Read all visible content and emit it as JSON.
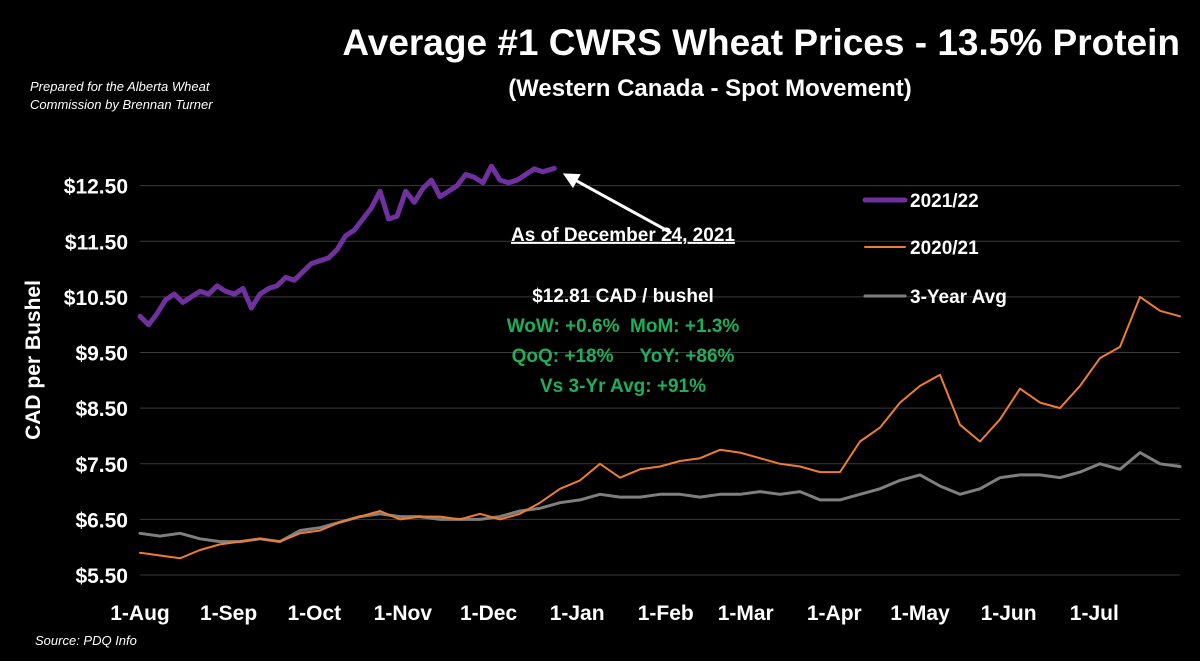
{
  "chart_data": {
    "type": "line",
    "title": "Average #1 CWRS Wheat Prices - 13.5% Protein",
    "subtitle": "(Western Canada - Spot Movement)",
    "prepared_by": [
      "Prepared for  the Alberta Wheat",
      "Commission by Brennan Turner"
    ],
    "source": "Source: PDQ Info",
    "ylabel": "CAD per Bushel",
    "xlabel": "",
    "ylim": [
      5.5,
      13.5
    ],
    "y_ticks": [
      "$5.50",
      "$6.50",
      "$7.50",
      "$8.50",
      "$9.50",
      "$10.50",
      "$11.50",
      "$12.50"
    ],
    "y_tick_values": [
      5.5,
      6.5,
      7.5,
      8.5,
      9.5,
      10.5,
      11.5,
      12.5
    ],
    "x_ticks": [
      "1-Aug",
      "1-Sep",
      "1-Oct",
      "1-Nov",
      "1-Dec",
      "1-Jan",
      "1-Feb",
      "1-Mar",
      "1-Apr",
      "1-May",
      "1-Jun",
      "1-Jul"
    ],
    "x_tick_values": [
      "Aug 1",
      "Sep 1",
      "Oct 1",
      "Nov 1",
      "Dec 1",
      "Jan 1",
      "Feb 1",
      "Mar 1",
      "Apr 1",
      "May 1",
      "Jun 1",
      "Jul 1"
    ],
    "x_range": [
      "Aug 1",
      "Jul 31"
    ],
    "grid": true,
    "legend_position": "right",
    "series": [
      {
        "name": "2021/22",
        "color": "#7030a0",
        "x": [
          "Aug 1",
          "Aug 4",
          "Aug 7",
          "Aug 10",
          "Aug 13",
          "Aug 16",
          "Aug 19",
          "Aug 22",
          "Aug 25",
          "Aug 28",
          "Aug 31",
          "Sep 3",
          "Sep 6",
          "Sep 9",
          "Sep 12",
          "Sep 15",
          "Sep 18",
          "Sep 21",
          "Sep 24",
          "Sep 27",
          "Sep 30",
          "Oct 3",
          "Oct 6",
          "Oct 9",
          "Oct 12",
          "Oct 15",
          "Oct 18",
          "Oct 21",
          "Oct 24",
          "Oct 27",
          "Oct 30",
          "Nov 2",
          "Nov 5",
          "Nov 8",
          "Nov 11",
          "Nov 14",
          "Nov 17",
          "Nov 20",
          "Nov 23",
          "Nov 26",
          "Nov 29",
          "Dec 2",
          "Dec 5",
          "Dec 8",
          "Dec 11",
          "Dec 14",
          "Dec 17",
          "Dec 20",
          "Dec 24"
        ],
        "values": [
          10.15,
          10.0,
          10.2,
          10.45,
          10.55,
          10.4,
          10.5,
          10.6,
          10.55,
          10.7,
          10.6,
          10.55,
          10.65,
          10.3,
          10.55,
          10.65,
          10.7,
          10.85,
          10.8,
          10.95,
          11.1,
          11.15,
          11.2,
          11.35,
          11.6,
          11.7,
          11.9,
          12.1,
          12.4,
          11.9,
          11.95,
          12.4,
          12.2,
          12.45,
          12.6,
          12.3,
          12.4,
          12.5,
          12.7,
          12.65,
          12.55,
          12.85,
          12.6,
          12.55,
          12.6,
          12.7,
          12.8,
          12.75,
          12.81
        ]
      },
      {
        "name": "2020/21",
        "color": "#ed7d31",
        "x": [
          "Aug 1",
          "Aug 8",
          "Aug 15",
          "Aug 22",
          "Aug 29",
          "Sep 5",
          "Sep 12",
          "Sep 19",
          "Sep 26",
          "Oct 3",
          "Oct 10",
          "Oct 17",
          "Oct 24",
          "Oct 31",
          "Nov 7",
          "Nov 14",
          "Nov 21",
          "Nov 28",
          "Dec 5",
          "Dec 12",
          "Dec 19",
          "Dec 26",
          "Jan 2",
          "Jan 9",
          "Jan 16",
          "Jan 23",
          "Jan 30",
          "Feb 6",
          "Feb 13",
          "Feb 20",
          "Feb 27",
          "Mar 6",
          "Mar 13",
          "Mar 20",
          "Mar 27",
          "Apr 3",
          "Apr 10",
          "Apr 17",
          "Apr 24",
          "May 1",
          "May 8",
          "May 15",
          "May 22",
          "May 29",
          "Jun 5",
          "Jun 12",
          "Jun 19",
          "Jun 26",
          "Jul 3",
          "Jul 10",
          "Jul 17",
          "Jul 24",
          "Jul 31"
        ],
        "values": [
          5.9,
          5.85,
          5.8,
          5.95,
          6.05,
          6.1,
          6.15,
          6.1,
          6.25,
          6.3,
          6.45,
          6.55,
          6.65,
          6.5,
          6.55,
          6.55,
          6.5,
          6.6,
          6.5,
          6.6,
          6.8,
          7.05,
          7.2,
          7.5,
          7.25,
          7.4,
          7.45,
          7.55,
          7.6,
          7.75,
          7.7,
          7.6,
          7.5,
          7.45,
          7.35,
          7.35,
          7.9,
          8.15,
          8.6,
          8.9,
          9.1,
          8.2,
          7.9,
          8.3,
          8.85,
          8.6,
          8.5,
          8.9,
          9.4,
          9.6,
          10.5,
          10.25,
          10.15
        ]
      },
      {
        "name": "3-Year Avg",
        "color": "#7f7f7f",
        "x": [
          "Aug 1",
          "Aug 8",
          "Aug 15",
          "Aug 22",
          "Aug 29",
          "Sep 5",
          "Sep 12",
          "Sep 19",
          "Sep 26",
          "Oct 3",
          "Oct 10",
          "Oct 17",
          "Oct 24",
          "Oct 31",
          "Nov 7",
          "Nov 14",
          "Nov 21",
          "Nov 28",
          "Dec 5",
          "Dec 12",
          "Dec 19",
          "Dec 26",
          "Jan 2",
          "Jan 9",
          "Jan 16",
          "Jan 23",
          "Jan 30",
          "Feb 6",
          "Feb 13",
          "Feb 20",
          "Feb 27",
          "Mar 6",
          "Mar 13",
          "Mar 20",
          "Mar 27",
          "Apr 3",
          "Apr 10",
          "Apr 17",
          "Apr 24",
          "May 1",
          "May 8",
          "May 15",
          "May 22",
          "May 29",
          "Jun 5",
          "Jun 12",
          "Jun 19",
          "Jun 26",
          "Jul 3",
          "Jul 10",
          "Jul 17",
          "Jul 24",
          "Jul 31"
        ],
        "values": [
          6.25,
          6.2,
          6.25,
          6.15,
          6.1,
          6.1,
          6.15,
          6.1,
          6.3,
          6.35,
          6.45,
          6.55,
          6.6,
          6.55,
          6.55,
          6.5,
          6.5,
          6.5,
          6.55,
          6.65,
          6.7,
          6.8,
          6.85,
          6.95,
          6.9,
          6.9,
          6.95,
          6.95,
          6.9,
          6.95,
          6.95,
          7.0,
          6.95,
          7.0,
          6.85,
          6.85,
          6.95,
          7.05,
          7.2,
          7.3,
          7.1,
          6.95,
          7.05,
          7.25,
          7.3,
          7.3,
          7.25,
          7.35,
          7.5,
          7.4,
          7.7,
          7.5,
          7.45
        ]
      }
    ]
  },
  "annotation": {
    "arrow_label": "As of December 24, 2021",
    "price": "$12.81 CAD / bushel",
    "line1": "WoW: +0.6%  MoM: +1.3%",
    "line2": "QoQ: +18%     YoY: +86%",
    "line3": "Vs 3-Yr Avg: +91%",
    "arrow_from": [
      "Feb 3",
      11.65
    ],
    "arrow_to": [
      "Dec 27",
      12.72
    ],
    "white_color": "#ffffff",
    "green_color": "#1fae5a"
  },
  "colors": {
    "background": "#000000",
    "gridline": "#3a3a3a",
    "text": "#ffffff"
  }
}
